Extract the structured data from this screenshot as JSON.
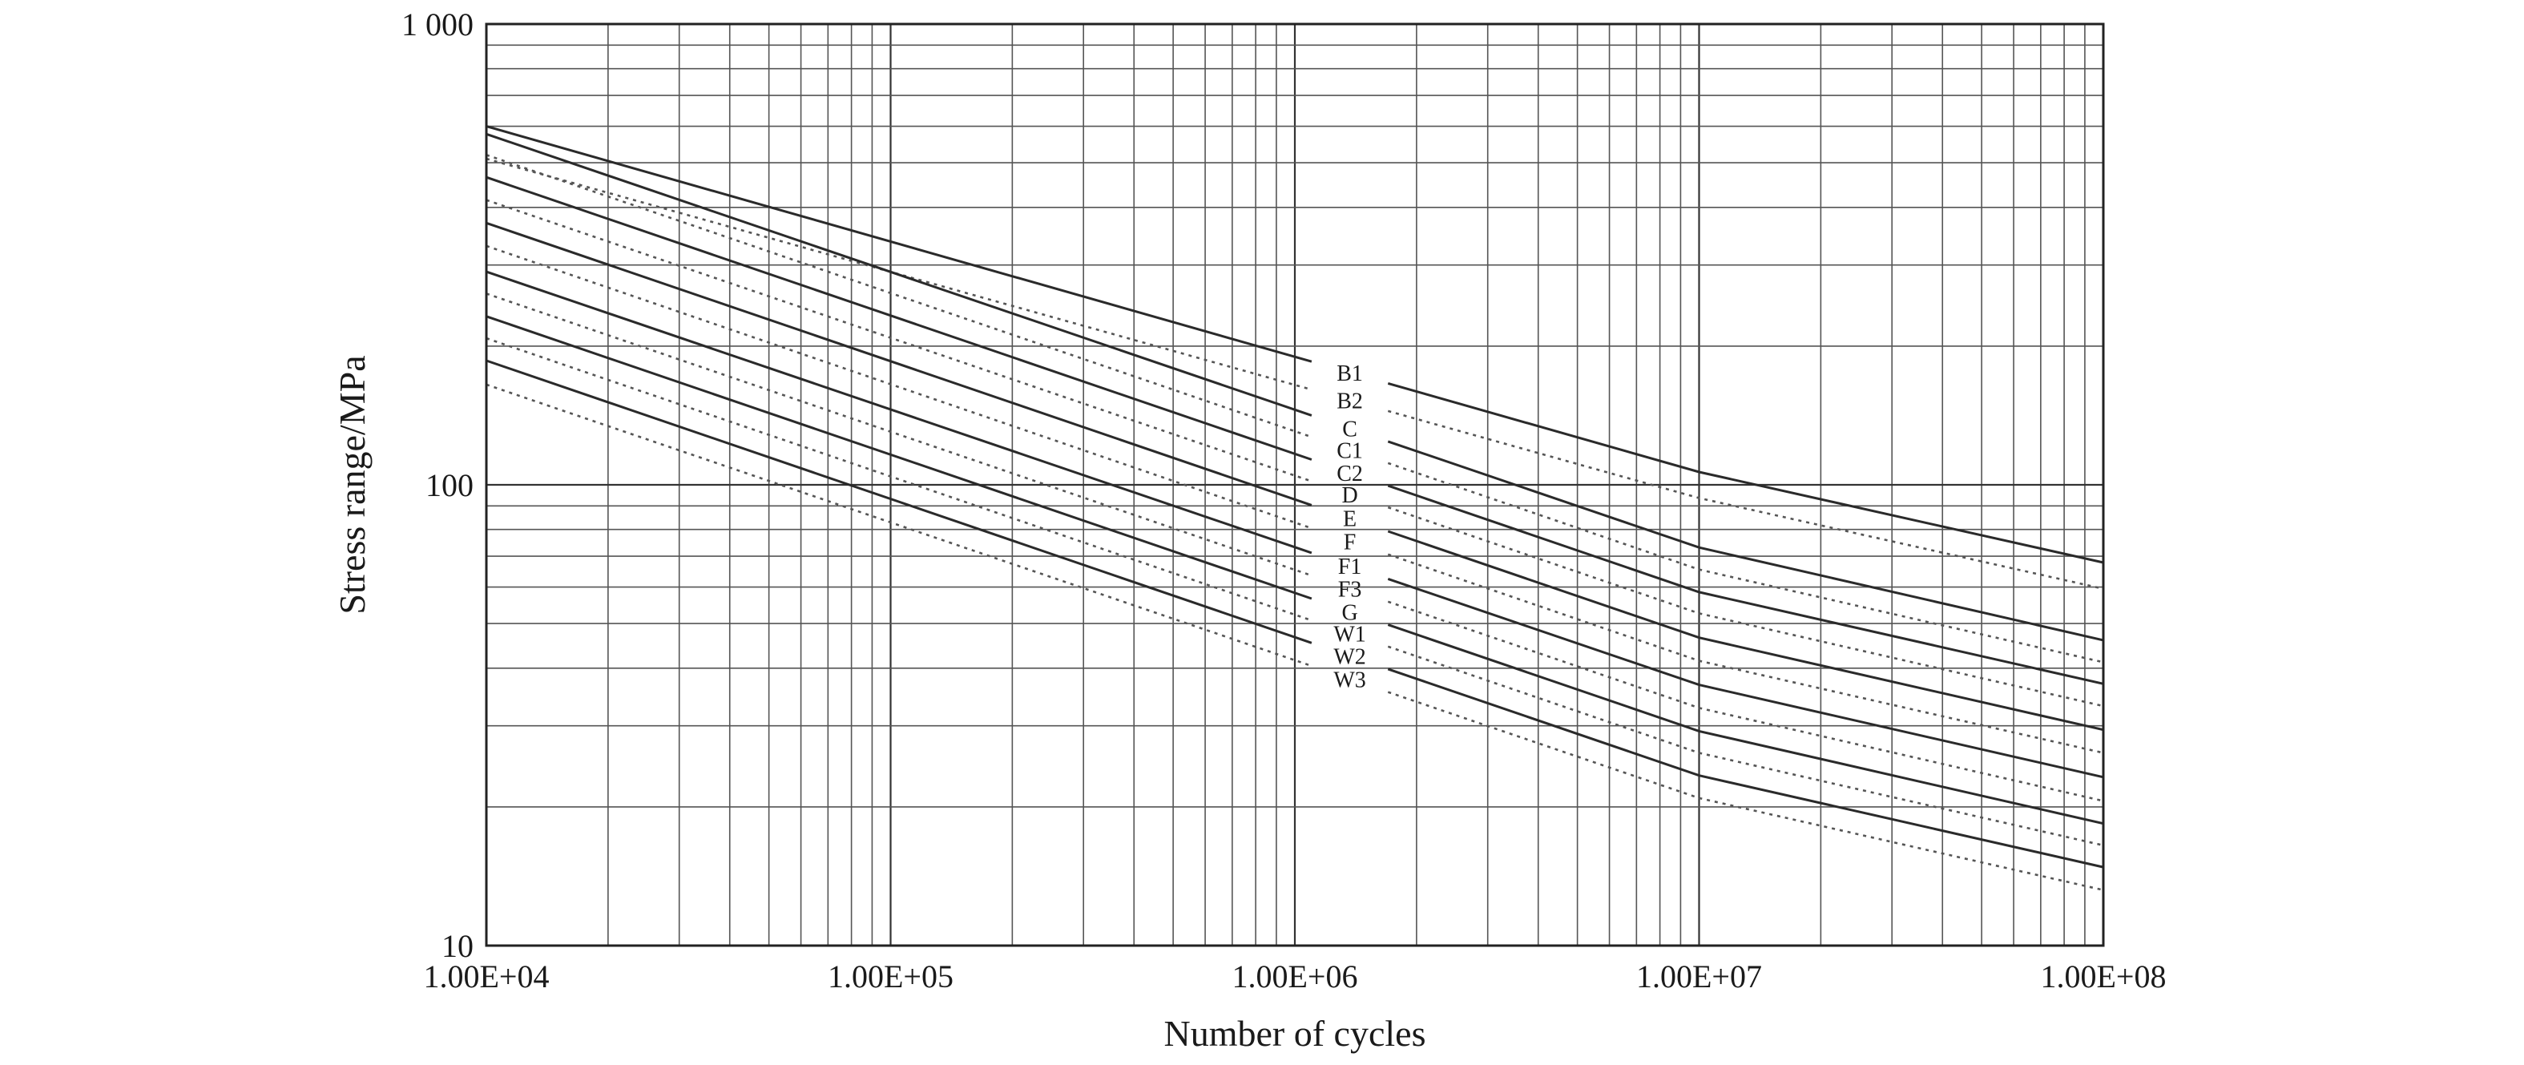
{
  "chart_data": {
    "type": "line",
    "xlabel": "Number of cycles",
    "ylabel": "Stress range/MPa",
    "x_scale": "log",
    "y_scale": "log",
    "xlim": [
      10000,
      100000000
    ],
    "ylim": [
      10,
      1000
    ],
    "x_ticks": [
      10000,
      100000,
      1000000,
      10000000,
      100000000
    ],
    "x_tick_labels": [
      "1.00E+04",
      "1.00E+05",
      "1.00E+06",
      "1.00E+07",
      "1.00E+08"
    ],
    "y_ticks": [
      10,
      100,
      1000
    ],
    "y_tick_labels": [
      "10",
      "100",
      "1 000"
    ],
    "grid": true,
    "line_colors": {
      "solid": "#2a2a2a",
      "dotted": "#555555"
    },
    "series": [
      {
        "name": "B1",
        "style": "solid",
        "x": [
          10000,
          10000000,
          100000000
        ],
        "y": [
          600,
          106.6,
          67.8
        ]
      },
      {
        "name": "B2",
        "style": "dotted",
        "x": [
          10000,
          10000000,
          100000000
        ],
        "y": [
          510,
          93.6,
          59.5
        ]
      },
      {
        "name": "C",
        "style": "solid",
        "x": [
          10000,
          10000000,
          100000000
        ],
        "y": [
          577,
          73.1,
          46.0
        ]
      },
      {
        "name": "C1",
        "style": "dotted",
        "x": [
          10000,
          10000000,
          100000000
        ],
        "y": [
          520,
          65.5,
          41.2
        ]
      },
      {
        "name": "C2",
        "style": "solid",
        "x": [
          10000,
          10000000,
          100000000
        ],
        "y": [
          465,
          58.5,
          37.0
        ]
      },
      {
        "name": "D",
        "style": "dotted",
        "x": [
          10000,
          10000000,
          100000000
        ],
        "y": [
          415,
          52.6,
          33.1
        ]
      },
      {
        "name": "E",
        "style": "solid",
        "x": [
          10000,
          10000000,
          100000000
        ],
        "y": [
          370,
          46.6,
          29.4
        ]
      },
      {
        "name": "F",
        "style": "dotted",
        "x": [
          10000,
          10000000,
          100000000
        ],
        "y": [
          330,
          41.5,
          26.2
        ]
      },
      {
        "name": "F1",
        "style": "solid",
        "x": [
          10000,
          10000000,
          100000000
        ],
        "y": [
          290,
          36.8,
          23.2
        ]
      },
      {
        "name": "F3",
        "style": "dotted",
        "x": [
          10000,
          10000000,
          100000000
        ],
        "y": [
          260,
          32.8,
          20.6
        ]
      },
      {
        "name": "G",
        "style": "solid",
        "x": [
          10000,
          10000000,
          100000000
        ],
        "y": [
          232,
          29.2,
          18.4
        ]
      },
      {
        "name": "W1",
        "style": "dotted",
        "x": [
          10000,
          10000000,
          100000000
        ],
        "y": [
          208,
          26.2,
          16.5
        ]
      },
      {
        "name": "W2",
        "style": "solid",
        "x": [
          10000,
          10000000,
          100000000
        ],
        "y": [
          186,
          23.4,
          14.8
        ]
      },
      {
        "name": "W3",
        "style": "dotted",
        "x": [
          10000,
          10000000,
          100000000
        ],
        "y": [
          165,
          20.9,
          13.2
        ]
      }
    ]
  }
}
